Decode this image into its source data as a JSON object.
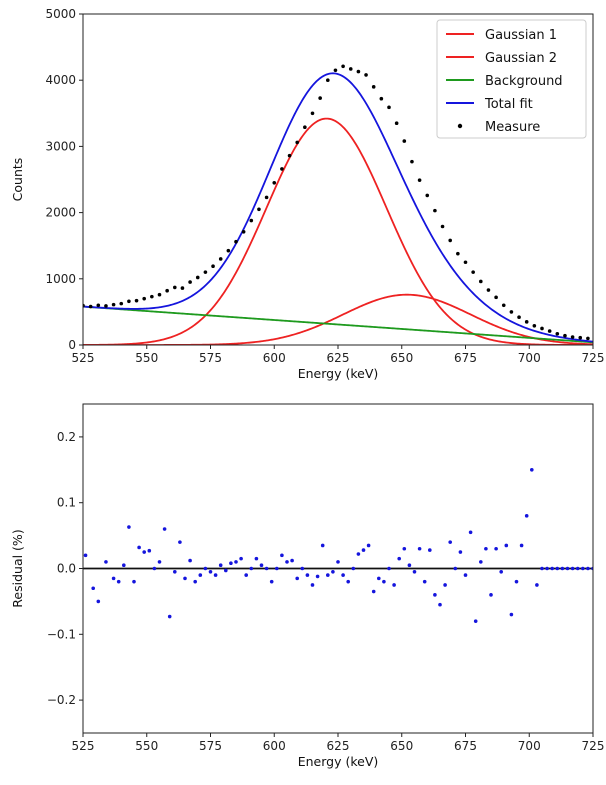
{
  "chart_data": [
    {
      "type": "line",
      "xlabel": "Energy (keV)",
      "ylabel": "Counts",
      "xlim": [
        525,
        725
      ],
      "ylim": [
        0,
        5000
      ],
      "xticks": [
        "525",
        "550",
        "575",
        "600",
        "625",
        "650",
        "675",
        "700",
        "725"
      ],
      "yticks": [
        "0",
        "1000",
        "2000",
        "3000",
        "4000",
        "5000"
      ],
      "grid": false,
      "legend_position": "top-right",
      "models": {
        "gaussian_1": {
          "amplitude": 3420,
          "center": 620.5,
          "sigma": 23.5
        },
        "gaussian_2": {
          "amplitude": 760,
          "center": 652,
          "sigma": 25
        },
        "background": {
          "start": 580,
          "end": 40
        }
      },
      "series": [
        {
          "name": "Gaussian 1",
          "kind": "line",
          "color": "#ee2222",
          "model": "gaussian_1"
        },
        {
          "name": "Gaussian 2",
          "kind": "line",
          "color": "#ee2222",
          "model": "gaussian_2"
        },
        {
          "name": "Background",
          "kind": "line",
          "color": "#1e9a1e",
          "model": "background"
        },
        {
          "name": "Total fit",
          "kind": "line",
          "color": "#1515dd",
          "model": "total"
        },
        {
          "name": "Measure",
          "kind": "scatter",
          "color": "#000000",
          "x": [
            525,
            528,
            531,
            534,
            537,
            540,
            543,
            546,
            549,
            552,
            555,
            558,
            561,
            564,
            567,
            570,
            573,
            576,
            579,
            582,
            585,
            588,
            591,
            594,
            597,
            600,
            603,
            606,
            609,
            612,
            615,
            618,
            621,
            624,
            627,
            630,
            633,
            636,
            639,
            642,
            645,
            648,
            651,
            654,
            657,
            660,
            663,
            666,
            669,
            672,
            675,
            678,
            681,
            684,
            687,
            690,
            693,
            696,
            699,
            702,
            705,
            708,
            711,
            714,
            717,
            720,
            723
          ],
          "y": [
            595,
            580,
            600,
            590,
            610,
            625,
            660,
            670,
            700,
            730,
            760,
            820,
            870,
            860,
            950,
            1020,
            1100,
            1190,
            1300,
            1425,
            1560,
            1710,
            1880,
            2050,
            2230,
            2450,
            2660,
            2860,
            3060,
            3290,
            3500,
            3730,
            4000,
            4150,
            4210,
            4170,
            4130,
            4080,
            3900,
            3720,
            3590,
            3350,
            3080,
            2770,
            2490,
            2260,
            2030,
            1790,
            1580,
            1380,
            1250,
            1100,
            960,
            830,
            720,
            600,
            500,
            420,
            350,
            290,
            250,
            210,
            170,
            140,
            120,
            110,
            100
          ]
        }
      ]
    },
    {
      "type": "scatter",
      "xlabel": "Energy (keV)",
      "ylabel": "Residual (%)",
      "xlim": [
        525,
        725
      ],
      "ylim": [
        -0.25,
        0.25
      ],
      "xticks": [
        "525",
        "550",
        "575",
        "600",
        "625",
        "650",
        "675",
        "700",
        "725"
      ],
      "yticks": [
        "−0.2",
        "−0.1",
        "0.0",
        "0.1",
        "0.2"
      ],
      "grid": false,
      "reference_line": 0,
      "series": [
        {
          "color": "#1515dd",
          "x": [
            526,
            529,
            531,
            534,
            537,
            539,
            541,
            543,
            545,
            547,
            549,
            551,
            553,
            555,
            557,
            559,
            561,
            563,
            565,
            567,
            569,
            571,
            573,
            575,
            577,
            579,
            581,
            583,
            585,
            587,
            589,
            591,
            593,
            595,
            597,
            599,
            601,
            603,
            605,
            607,
            609,
            611,
            613,
            615,
            617,
            619,
            621,
            623,
            625,
            627,
            629,
            631,
            633,
            635,
            637,
            639,
            641,
            643,
            645,
            647,
            649,
            651,
            653,
            655,
            657,
            659,
            661,
            663,
            665,
            667,
            669,
            671,
            673,
            675,
            677,
            679,
            681,
            683,
            685,
            687,
            689,
            691,
            693,
            695,
            697,
            699,
            701,
            703,
            705,
            707,
            709,
            711,
            713,
            715,
            717,
            719,
            721,
            723,
            725
          ],
          "y": [
            0.02,
            -0.03,
            -0.05,
            0.01,
            -0.015,
            -0.02,
            0.005,
            0.063,
            -0.02,
            0.032,
            0.025,
            0.027,
            0.0,
            0.01,
            0.06,
            -0.073,
            -0.005,
            0.04,
            -0.015,
            0.012,
            -0.02,
            -0.01,
            0.0,
            -0.005,
            -0.01,
            0.005,
            -0.003,
            0.008,
            0.01,
            0.015,
            -0.01,
            0.0,
            0.015,
            0.005,
            0.0,
            -0.02,
            0.0,
            0.02,
            0.01,
            0.012,
            -0.015,
            0.0,
            -0.01,
            -0.025,
            -0.012,
            0.035,
            -0.01,
            -0.005,
            0.01,
            -0.01,
            -0.02,
            0.0,
            0.022,
            0.028,
            0.035,
            -0.035,
            -0.015,
            -0.02,
            0.0,
            -0.025,
            0.015,
            0.03,
            0.005,
            -0.005,
            0.03,
            -0.02,
            0.028,
            -0.04,
            -0.055,
            -0.025,
            0.04,
            0.0,
            0.025,
            -0.01,
            0.055,
            -0.08,
            0.01,
            0.03,
            -0.04,
            0.03,
            -0.005,
            0.035,
            -0.07,
            -0.02,
            0.035,
            0.08,
            0.15,
            -0.025,
            0.0,
            0.0,
            0.0,
            0.0,
            0.0,
            0.0,
            0.0,
            0.0,
            0.0,
            0.0,
            0.0
          ]
        }
      ]
    }
  ]
}
